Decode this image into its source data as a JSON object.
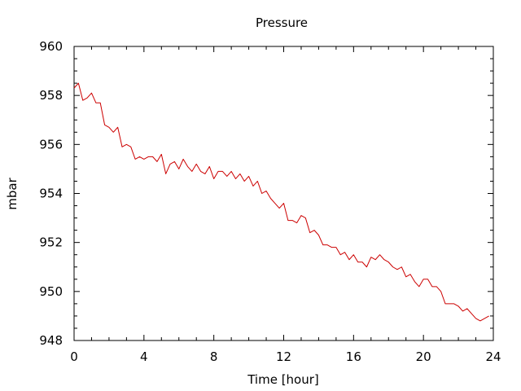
{
  "chart_data": {
    "type": "line",
    "title": "Pressure",
    "xlabel": "Time [hour]",
    "ylabel": "mbar",
    "xlim": [
      0,
      24
    ],
    "ylim": [
      948,
      960
    ],
    "xticks": [
      0,
      4,
      8,
      12,
      16,
      20,
      24
    ],
    "yticks": [
      948,
      950,
      952,
      954,
      956,
      958,
      960
    ],
    "grid": false,
    "legend": "none",
    "line_color": "#cc0000",
    "series": [
      {
        "x": [
          0.0,
          0.25,
          0.5,
          0.75,
          1.0,
          1.25,
          1.5,
          1.75,
          2.0,
          2.25,
          2.5,
          2.75,
          3.0,
          3.25,
          3.5,
          3.75,
          4.0,
          4.25,
          4.5,
          4.75,
          5.0,
          5.25,
          5.5,
          5.75,
          6.0,
          6.25,
          6.5,
          6.75,
          7.0,
          7.25,
          7.5,
          7.75,
          8.0,
          8.25,
          8.5,
          8.75,
          9.0,
          9.25,
          9.5,
          9.75,
          10.0,
          10.25,
          10.5,
          10.75,
          11.0,
          11.25,
          11.5,
          11.75,
          12.0,
          12.25,
          12.5,
          12.75,
          13.0,
          13.25,
          13.5,
          13.75,
          14.0,
          14.25,
          14.5,
          14.75,
          15.0,
          15.25,
          15.5,
          15.75,
          16.0,
          16.25,
          16.5,
          16.75,
          17.0,
          17.25,
          17.5,
          17.75,
          18.0,
          18.25,
          18.5,
          18.75,
          19.0,
          19.25,
          19.5,
          19.75,
          20.0,
          20.25,
          20.5,
          20.75,
          21.0,
          21.25,
          21.5,
          21.75,
          22.0,
          22.25,
          22.5,
          22.75,
          23.0,
          23.25,
          23.5,
          23.75
        ],
        "values": [
          958.3,
          958.5,
          957.8,
          957.9,
          958.1,
          957.7,
          957.7,
          956.8,
          956.7,
          956.5,
          956.7,
          955.9,
          956.0,
          955.9,
          955.4,
          955.5,
          955.4,
          955.5,
          955.5,
          955.3,
          955.6,
          954.8,
          955.2,
          955.3,
          955.0,
          955.4,
          955.1,
          954.9,
          955.2,
          954.9,
          954.8,
          955.1,
          954.6,
          954.9,
          954.9,
          954.7,
          954.9,
          954.6,
          954.8,
          954.5,
          954.7,
          954.3,
          954.5,
          954.0,
          954.1,
          953.8,
          953.6,
          953.4,
          953.6,
          952.9,
          952.9,
          952.8,
          953.1,
          953.0,
          952.4,
          952.5,
          952.3,
          951.9,
          951.9,
          951.8,
          951.8,
          951.5,
          951.6,
          951.3,
          951.5,
          951.2,
          951.2,
          951.0,
          951.4,
          951.3,
          951.5,
          951.3,
          951.2,
          951.0,
          950.9,
          951.0,
          950.6,
          950.7,
          950.4,
          950.2,
          950.5,
          950.5,
          950.2,
          950.2,
          950.0,
          949.5,
          949.5,
          949.5,
          949.4,
          949.2,
          949.3,
          949.1,
          948.9,
          948.8,
          948.9,
          949.0
        ]
      }
    ]
  }
}
